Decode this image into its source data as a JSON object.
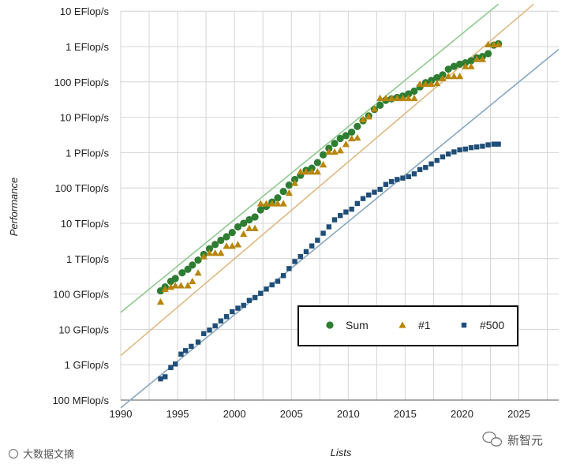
{
  "chart_data": {
    "type": "scatter",
    "title": "",
    "xlabel": "Lists",
    "ylabel": "Performance",
    "xlim": [
      1990,
      2028.5
    ],
    "ylim_log10_flops": [
      8,
      19.2
    ],
    "x_ticks": [
      "1990",
      "1995",
      "2000",
      "2005",
      "2010",
      "2015",
      "2020",
      "2025"
    ],
    "y_ticks": [
      "100 MFlop/s",
      "1 GFlop/s",
      "10 GFlop/s",
      "100 GFlop/s",
      "1 TFlop/s",
      "10 TFlop/s",
      "100 TFlop/s",
      "1 PFlop/s",
      "10 PFlop/s",
      "100 PFlop/s",
      "1 EFlop/s",
      "10 EFlop/s"
    ],
    "grid": true,
    "legend_position": "bottom-right",
    "series": [
      {
        "name": "Sum",
        "marker": "circle",
        "color": "#2e7d32",
        "points": [
          [
            1993.5,
            11.09
          ],
          [
            1993.9,
            11.2
          ],
          [
            1994.4,
            11.36
          ],
          [
            1994.8,
            11.44
          ],
          [
            1995.4,
            11.6
          ],
          [
            1995.9,
            11.7
          ],
          [
            1996.3,
            11.82
          ],
          [
            1996.8,
            11.96
          ],
          [
            1997.3,
            12.12
          ],
          [
            1997.8,
            12.28
          ],
          [
            1998.3,
            12.4
          ],
          [
            1998.8,
            12.52
          ],
          [
            1999.3,
            12.62
          ],
          [
            1999.8,
            12.74
          ],
          [
            2000.3,
            12.9
          ],
          [
            2000.8,
            13.0
          ],
          [
            2001.3,
            13.1
          ],
          [
            2001.8,
            13.18
          ],
          [
            2002.3,
            13.38
          ],
          [
            2002.8,
            13.48
          ],
          [
            2003.3,
            13.6
          ],
          [
            2003.8,
            13.72
          ],
          [
            2004.3,
            13.9
          ],
          [
            2004.8,
            14.08
          ],
          [
            2005.3,
            14.24
          ],
          [
            2005.8,
            14.36
          ],
          [
            2006.3,
            14.5
          ],
          [
            2006.8,
            14.56
          ],
          [
            2007.3,
            14.72
          ],
          [
            2007.8,
            14.94
          ],
          [
            2008.3,
            15.12
          ],
          [
            2008.8,
            15.26
          ],
          [
            2009.3,
            15.4
          ],
          [
            2009.8,
            15.48
          ],
          [
            2010.3,
            15.58
          ],
          [
            2010.8,
            15.74
          ],
          [
            2011.3,
            15.9
          ],
          [
            2011.8,
            16.04
          ],
          [
            2012.3,
            16.22
          ],
          [
            2012.8,
            16.34
          ],
          [
            2013.3,
            16.48
          ],
          [
            2013.8,
            16.52
          ],
          [
            2014.3,
            16.56
          ],
          [
            2014.8,
            16.6
          ],
          [
            2015.3,
            16.66
          ],
          [
            2015.8,
            16.74
          ],
          [
            2016.3,
            16.86
          ],
          [
            2016.8,
            16.98
          ],
          [
            2017.3,
            17.04
          ],
          [
            2017.8,
            17.12
          ],
          [
            2018.3,
            17.2
          ],
          [
            2018.8,
            17.36
          ],
          [
            2019.3,
            17.44
          ],
          [
            2019.8,
            17.5
          ],
          [
            2020.3,
            17.54
          ],
          [
            2020.8,
            17.6
          ],
          [
            2021.3,
            17.68
          ],
          [
            2021.8,
            17.72
          ],
          [
            2022.3,
            17.8
          ],
          [
            2022.8,
            18.04
          ],
          [
            2023.2,
            18.08
          ]
        ]
      },
      {
        "name": "#1",
        "marker": "triangle",
        "color": "#b8860b",
        "points": [
          [
            1993.5,
            10.78
          ],
          [
            1993.9,
            11.14
          ],
          [
            1994.4,
            11.2
          ],
          [
            1994.8,
            11.24
          ],
          [
            1995.3,
            11.24
          ],
          [
            1995.9,
            11.24
          ],
          [
            1996.3,
            11.36
          ],
          [
            1996.8,
            11.6
          ],
          [
            1997.3,
            12.06
          ],
          [
            1997.8,
            12.16
          ],
          [
            1998.3,
            12.16
          ],
          [
            1998.8,
            12.16
          ],
          [
            1999.3,
            12.36
          ],
          [
            1999.8,
            12.36
          ],
          [
            2000.3,
            12.4
          ],
          [
            2000.8,
            12.7
          ],
          [
            2001.3,
            12.86
          ],
          [
            2001.8,
            12.86
          ],
          [
            2002.3,
            13.56
          ],
          [
            2002.8,
            13.56
          ],
          [
            2003.3,
            13.56
          ],
          [
            2003.8,
            13.56
          ],
          [
            2004.3,
            13.56
          ],
          [
            2004.8,
            13.86
          ],
          [
            2005.3,
            14.14
          ],
          [
            2005.8,
            14.46
          ],
          [
            2006.3,
            14.46
          ],
          [
            2006.8,
            14.46
          ],
          [
            2007.3,
            14.46
          ],
          [
            2007.8,
            14.66
          ],
          [
            2008.3,
            15.02
          ],
          [
            2008.8,
            15.02
          ],
          [
            2009.3,
            15.06
          ],
          [
            2009.8,
            15.24
          ],
          [
            2010.3,
            15.4
          ],
          [
            2010.8,
            15.42
          ],
          [
            2011.3,
            15.94
          ],
          [
            2011.8,
            16.02
          ],
          [
            2012.3,
            16.24
          ],
          [
            2012.8,
            16.54
          ],
          [
            2013.3,
            16.54
          ],
          [
            2013.8,
            16.54
          ],
          [
            2014.3,
            16.54
          ],
          [
            2014.8,
            16.54
          ],
          [
            2015.3,
            16.54
          ],
          [
            2015.8,
            16.54
          ],
          [
            2016.3,
            16.94
          ],
          [
            2016.8,
            16.94
          ],
          [
            2017.3,
            16.94
          ],
          [
            2017.8,
            16.96
          ],
          [
            2018.3,
            17.1
          ],
          [
            2018.8,
            17.16
          ],
          [
            2019.3,
            17.16
          ],
          [
            2019.8,
            17.16
          ],
          [
            2020.3,
            17.44
          ],
          [
            2020.8,
            17.44
          ],
          [
            2021.3,
            17.64
          ],
          [
            2021.8,
            17.64
          ],
          [
            2022.3,
            18.06
          ],
          [
            2022.8,
            18.06
          ],
          [
            2023.2,
            18.06
          ]
        ]
      },
      {
        "name": "#500",
        "marker": "square",
        "color": "#1f4e79",
        "points": [
          [
            1993.5,
            8.6
          ],
          [
            1993.9,
            8.66
          ],
          [
            1994.4,
            8.92
          ],
          [
            1994.8,
            9.02
          ],
          [
            1995.3,
            9.3
          ],
          [
            1995.7,
            9.4
          ],
          [
            1996.2,
            9.52
          ],
          [
            1996.8,
            9.64
          ],
          [
            1997.3,
            9.88
          ],
          [
            1997.8,
            9.98
          ],
          [
            1998.3,
            10.1
          ],
          [
            1998.8,
            10.24
          ],
          [
            1999.3,
            10.36
          ],
          [
            1999.8,
            10.5
          ],
          [
            2000.3,
            10.6
          ],
          [
            2000.8,
            10.68
          ],
          [
            2001.3,
            10.82
          ],
          [
            2001.8,
            10.9
          ],
          [
            2002.3,
            11.02
          ],
          [
            2002.8,
            11.14
          ],
          [
            2003.3,
            11.26
          ],
          [
            2003.8,
            11.36
          ],
          [
            2004.3,
            11.52
          ],
          [
            2004.8,
            11.72
          ],
          [
            2005.3,
            11.92
          ],
          [
            2005.8,
            12.06
          ],
          [
            2006.3,
            12.2
          ],
          [
            2006.8,
            12.36
          ],
          [
            2007.3,
            12.52
          ],
          [
            2007.8,
            12.72
          ],
          [
            2008.3,
            12.9
          ],
          [
            2008.8,
            13.1
          ],
          [
            2009.3,
            13.22
          ],
          [
            2009.8,
            13.32
          ],
          [
            2010.3,
            13.4
          ],
          [
            2010.8,
            13.56
          ],
          [
            2011.3,
            13.7
          ],
          [
            2011.8,
            13.8
          ],
          [
            2012.3,
            13.88
          ],
          [
            2012.8,
            13.96
          ],
          [
            2013.3,
            14.1
          ],
          [
            2013.8,
            14.18
          ],
          [
            2014.3,
            14.24
          ],
          [
            2014.8,
            14.28
          ],
          [
            2015.3,
            14.32
          ],
          [
            2015.8,
            14.4
          ],
          [
            2016.3,
            14.52
          ],
          [
            2016.8,
            14.58
          ],
          [
            2017.3,
            14.68
          ],
          [
            2017.8,
            14.78
          ],
          [
            2018.3,
            14.88
          ],
          [
            2018.8,
            14.96
          ],
          [
            2019.3,
            15.02
          ],
          [
            2019.8,
            15.08
          ],
          [
            2020.3,
            15.1
          ],
          [
            2020.8,
            15.14
          ],
          [
            2021.3,
            15.16
          ],
          [
            2021.8,
            15.18
          ],
          [
            2022.3,
            15.22
          ],
          [
            2022.8,
            15.24
          ],
          [
            2023.2,
            15.24
          ]
        ]
      }
    ],
    "trend_lines": [
      {
        "name": "Sum trend",
        "color": "#8fc98f",
        "points": [
          [
            1990,
            10.48
          ],
          [
            2023.2,
            19.2
          ]
        ]
      },
      {
        "name": "#1 trend",
        "color": "#dfb982",
        "points": [
          [
            1990,
            9.26
          ],
          [
            2026.3,
            19.2
          ]
        ]
      },
      {
        "name": "#500 trend",
        "color": "#86a7c0",
        "points": [
          [
            1990,
            7.78
          ],
          [
            2028.5,
            17.92
          ]
        ]
      }
    ]
  },
  "watermarks": {
    "left": "大数据文摘",
    "right": "新智元"
  }
}
